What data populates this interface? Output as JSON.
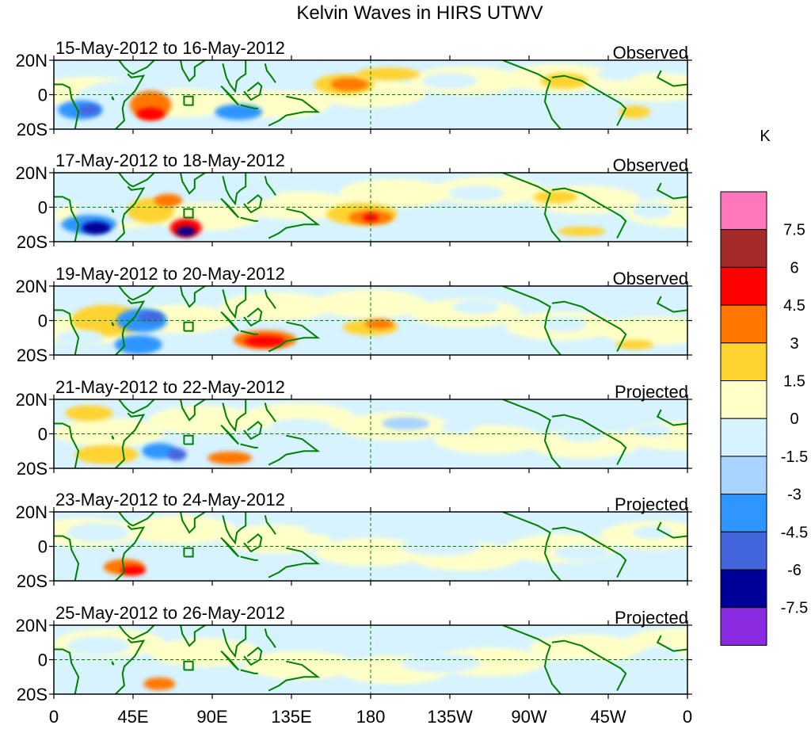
{
  "title": "Kelvin Waves in HIRS UTWV",
  "units": "K",
  "lat_labels": [
    "20N",
    "0",
    "20S"
  ],
  "lon_labels": [
    "0",
    "45E",
    "90E",
    "135E",
    "180",
    "135W",
    "90W",
    "45W",
    "0"
  ],
  "panels": [
    {
      "date_range": "15-May-2012 to 16-May-2012",
      "kind": "Observed"
    },
    {
      "date_range": "17-May-2012 to 18-May-2012",
      "kind": "Observed"
    },
    {
      "date_range": "19-May-2012 to 20-May-2012",
      "kind": "Observed"
    },
    {
      "date_range": "21-May-2012 to 22-May-2012",
      "kind": "Projected"
    },
    {
      "date_range": "23-May-2012 to 24-May-2012",
      "kind": "Projected"
    },
    {
      "date_range": "25-May-2012 to 26-May-2012",
      "kind": "Projected"
    }
  ],
  "colorbar": {
    "labels": [
      "7.5",
      "6",
      "4.5",
      "3",
      "1.5",
      "0",
      "-1.5",
      "-3",
      "-4.5",
      "-6",
      "-7.5"
    ],
    "colors": [
      "#ff77bb",
      "#a52a2a",
      "#ff0000",
      "#ff7700",
      "#ffd330",
      "#ffffc8",
      "#d7f3ff",
      "#a8d4ff",
      "#2f95ff",
      "#4466dd",
      "#000099",
      "#8a2be2"
    ]
  },
  "colors": {
    "coast": "#008000",
    "equator_line": "#008000"
  }
}
